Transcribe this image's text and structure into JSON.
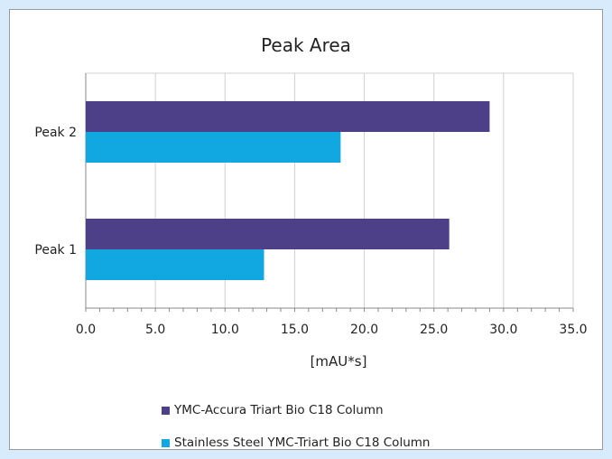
{
  "chart_data": {
    "type": "bar",
    "orientation": "horizontal",
    "title": "Peak Area",
    "xlabel": "[mAU*s]",
    "ylabel": "",
    "categories": [
      "Peak 1",
      "Peak 2"
    ],
    "series": [
      {
        "name": "YMC-Accura Triart Bio C18 Column",
        "color": "#4e3f89",
        "values": [
          26.1,
          29.0
        ]
      },
      {
        "name": "Stainless Steel YMC-Triart Bio C18 Column",
        "color": "#11a8e2",
        "values": [
          12.8,
          18.3
        ]
      }
    ],
    "xlim": [
      0,
      35
    ],
    "xticks": [
      "0.0",
      "5.0",
      "10.0",
      "15.0",
      "20.0",
      "25.0",
      "30.0",
      "35.0"
    ],
    "grid": true,
    "legend_position": "bottom"
  }
}
